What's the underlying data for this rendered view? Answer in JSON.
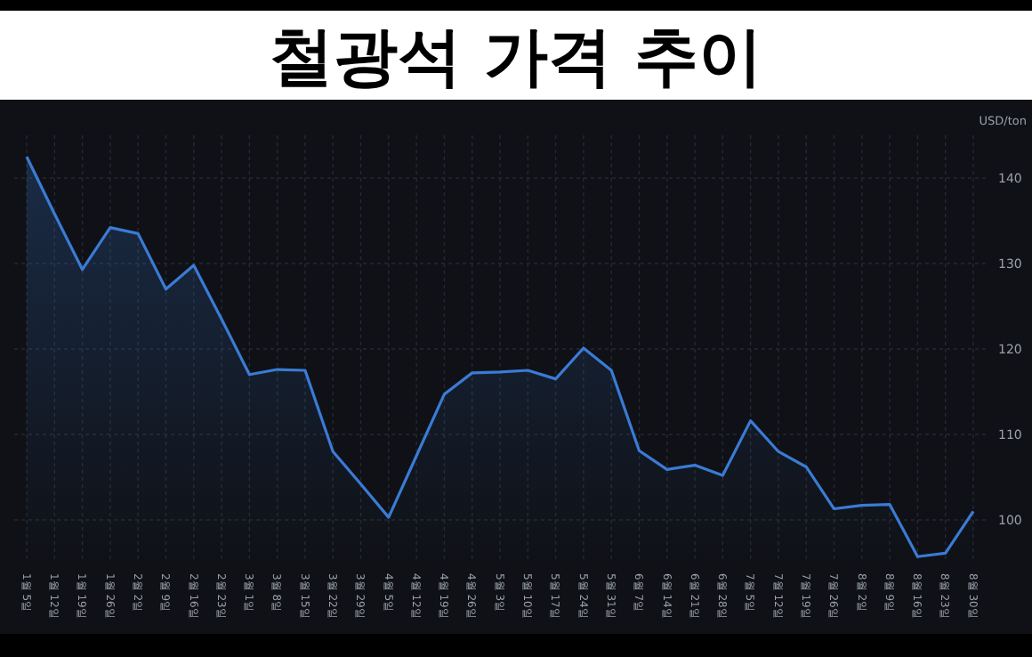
{
  "chart_data": {
    "type": "area",
    "title": "철광석 가격 추이",
    "ylabel": "USD/ton",
    "categories": [
      "1월 5일",
      "1월 12일",
      "1월 19일",
      "1월 26일",
      "2월 2일",
      "2월 9일",
      "2월 16일",
      "2월 23일",
      "3월 1일",
      "3월 8일",
      "3월 15일",
      "3월 22일",
      "3월 29일",
      "4월 5일",
      "4월 12일",
      "4월 19일",
      "4월 26일",
      "5월 3일",
      "5월 10일",
      "5월 17일",
      "5월 24일",
      "5월 31일",
      "6월 7일",
      "6월 14일",
      "6월 21일",
      "6월 28일",
      "7월 5일",
      "7월 12일",
      "7월 19일",
      "7월 26일",
      "8월 2일",
      "8월 9일",
      "8월 16일",
      "8월 23일",
      "8월 30일"
    ],
    "series": [
      {
        "color": "#3a7bd5",
        "values": [
          142.5,
          135.8,
          129.3,
          134.2,
          133.5,
          127.0,
          129.8,
          123.5,
          117.0,
          117.6,
          117.5,
          108.0,
          104.2,
          100.3,
          107.5,
          114.7,
          117.2,
          117.3,
          117.5,
          116.5,
          120.1,
          117.5,
          108.1,
          105.9,
          106.4,
          105.2,
          111.6,
          108.0,
          106.2,
          101.3,
          101.7,
          101.8,
          95.7,
          96.1,
          101.0
        ]
      }
    ],
    "ylim": [
      95,
      145
    ],
    "yticks": [
      100,
      110,
      120,
      130,
      140
    ],
    "grid": true,
    "marker": "none",
    "line_style": "solid"
  }
}
